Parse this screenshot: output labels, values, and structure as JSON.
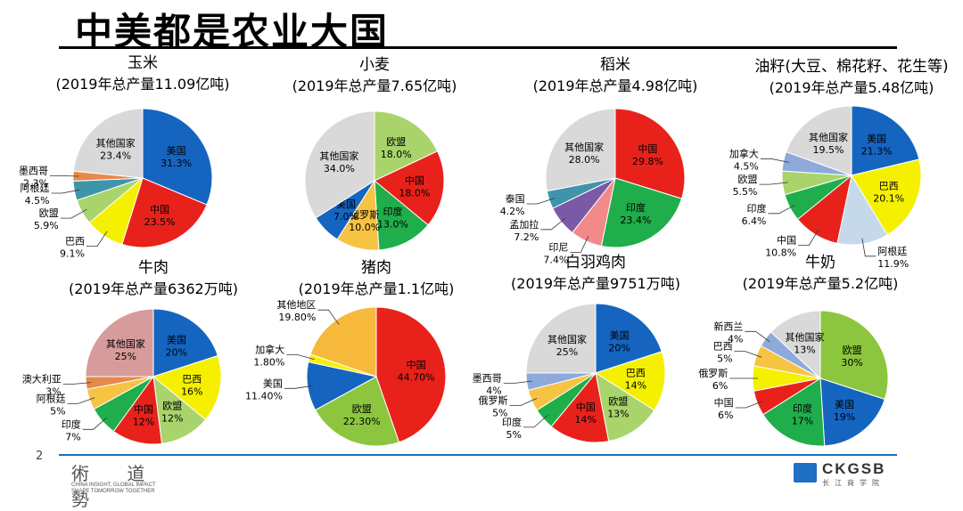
{
  "slide": {
    "title": "中美都是农业大国",
    "page_number": "2",
    "motto_glyphs": "術 道 勢",
    "motto_en_line1": "CHINA INSIGHT, GLOBAL IMPACT",
    "motto_en_line2": "SHAPE TOMORROW TOGETHER",
    "brand_name": "CKGSB",
    "brand_cn": "长江商学院",
    "accent_color": "#1f6fc4"
  },
  "chart_data": [
    {
      "type": "pie",
      "title": "玉米",
      "subtitle": "(2019年总产量11.09亿吨)",
      "slices": [
        {
          "label": "美国",
          "value_text": "31.3%",
          "value": 31.3,
          "color": "#1565c0",
          "label_position": "inside"
        },
        {
          "label": "中国",
          "value_text": "23.5%",
          "value": 23.5,
          "color": "#e8221b",
          "label_position": "inside"
        },
        {
          "label": "巴西",
          "value_text": "9.1%",
          "value": 9.1,
          "color": "#f4f000",
          "label_position": "outside"
        },
        {
          "label": "欧盟",
          "value_text": "5.9%",
          "value": 5.9,
          "color": "#a9d46b",
          "label_position": "outside"
        },
        {
          "label": "阿根廷",
          "value_text": "4.5%",
          "value": 4.5,
          "color": "#3e95ab",
          "label_position": "outside"
        },
        {
          "label": "墨西哥",
          "value_text": "2.3%",
          "value": 2.3,
          "color": "#e7894a",
          "label_position": "outside"
        },
        {
          "label": "其他国家",
          "value_text": "23.4%",
          "value": 23.4,
          "color": "#d9d9d9",
          "label_position": "inside"
        }
      ]
    },
    {
      "type": "pie",
      "title": "小麦",
      "subtitle": "(2019年总产量7.65亿吨)",
      "slices": [
        {
          "label": "欧盟",
          "value_text": "18.0%",
          "value": 18.0,
          "color": "#a9d46b",
          "label_position": "inside"
        },
        {
          "label": "中国",
          "value_text": "18.0%",
          "value": 18.0,
          "color": "#e8221b",
          "label_position": "inside"
        },
        {
          "label": "印度",
          "value_text": "13.0%",
          "value": 13.0,
          "color": "#1fae4b",
          "label_position": "inside"
        },
        {
          "label": "俄罗斯",
          "value_text": "10.0%",
          "value": 10.0,
          "color": "#f6c343",
          "label_position": "inside"
        },
        {
          "label": "美国",
          "value_text": "7.0%",
          "value": 7.0,
          "color": "#1565c0",
          "label_position": "inside"
        },
        {
          "label": "其他国家",
          "value_text": "34.0%",
          "value": 34.0,
          "color": "#d9d9d9",
          "label_position": "inside"
        }
      ]
    },
    {
      "type": "pie",
      "title": "稻米",
      "subtitle": "(2019年总产量4.98亿吨)",
      "slices": [
        {
          "label": "中国",
          "value_text": "29.8%",
          "value": 29.8,
          "color": "#e8221b",
          "label_position": "inside"
        },
        {
          "label": "印度",
          "value_text": "23.4%",
          "value": 23.4,
          "color": "#1fae4b",
          "label_position": "inside"
        },
        {
          "label": "印尼",
          "value_text": "7.4%",
          "value": 7.4,
          "color": "#f28a8a",
          "label_position": "outside"
        },
        {
          "label": "孟加拉",
          "value_text": "7.2%",
          "value": 7.2,
          "color": "#7a5aa6",
          "label_position": "outside"
        },
        {
          "label": "泰国",
          "value_text": "4.2%",
          "value": 4.2,
          "color": "#3e95ab",
          "label_position": "outside"
        },
        {
          "label": "其他国家",
          "value_text": "28.0%",
          "value": 28.0,
          "color": "#d9d9d9",
          "label_position": "inside"
        }
      ]
    },
    {
      "type": "pie",
      "title": "油籽(大豆、棉花籽、花生等)",
      "subtitle": "(2019年总产量5.48亿吨)",
      "slices": [
        {
          "label": "美国",
          "value_text": "21.3%",
          "value": 21.3,
          "color": "#1565c0",
          "label_position": "inside"
        },
        {
          "label": "巴西",
          "value_text": "20.1%",
          "value": 20.1,
          "color": "#f4f000",
          "label_position": "inside"
        },
        {
          "label": "阿根廷",
          "value_text": "11.9%",
          "value": 11.9,
          "color": "#c5d9ea",
          "label_position": "outside"
        },
        {
          "label": "中国",
          "value_text": "10.8%",
          "value": 10.8,
          "color": "#e8221b",
          "label_position": "outside"
        },
        {
          "label": "印度",
          "value_text": "6.4%",
          "value": 6.4,
          "color": "#1fae4b",
          "label_position": "outside"
        },
        {
          "label": "欧盟",
          "value_text": "5.5%",
          "value": 5.5,
          "color": "#a9d46b",
          "label_position": "outside"
        },
        {
          "label": "加拿大",
          "value_text": "4.5%",
          "value": 4.5,
          "color": "#8eaadb",
          "label_position": "outside"
        },
        {
          "label": "其他国家",
          "value_text": "19.5%",
          "value": 19.5,
          "color": "#d9d9d9",
          "label_position": "inside"
        }
      ]
    },
    {
      "type": "pie",
      "title": "牛肉",
      "subtitle": "(2019年总产量6362万吨)",
      "slices": [
        {
          "label": "美国",
          "value_text": "20%",
          "value": 20,
          "color": "#1565c0",
          "label_position": "inside"
        },
        {
          "label": "巴西",
          "value_text": "16%",
          "value": 16,
          "color": "#f4f000",
          "label_position": "inside"
        },
        {
          "label": "欧盟",
          "value_text": "12%",
          "value": 12,
          "color": "#a9d46b",
          "label_position": "inside"
        },
        {
          "label": "中国",
          "value_text": "12%",
          "value": 12,
          "color": "#e8221b",
          "label_position": "inside"
        },
        {
          "label": "印度",
          "value_text": "7%",
          "value": 7,
          "color": "#1fae4b",
          "label_position": "outside"
        },
        {
          "label": "阿根廷",
          "value_text": "5%",
          "value": 5,
          "color": "#f6c343",
          "label_position": "outside"
        },
        {
          "label": "澳大利亚",
          "value_text": "3%",
          "value": 3,
          "color": "#e7894a",
          "label_position": "outside"
        },
        {
          "label": "其他国家",
          "value_text": "25%",
          "value": 25,
          "color": "#d89b9b",
          "label_position": "inside"
        }
      ]
    },
    {
      "type": "pie",
      "title": "猪肉",
      "subtitle": "(2019年总产量1.1亿吨)",
      "slices": [
        {
          "label": "中国",
          "value_text": "44.70%",
          "value": 44.7,
          "color": "#e8221b",
          "label_position": "inside"
        },
        {
          "label": "欧盟",
          "value_text": "22.30%",
          "value": 22.3,
          "color": "#8cc63f",
          "label_position": "inside"
        },
        {
          "label": "美国",
          "value_text": "11.40%",
          "value": 11.4,
          "color": "#1565c0",
          "label_position": "outside"
        },
        {
          "label": "加拿大",
          "value_text": "1.80%",
          "value": 1.8,
          "color": "#f4f000",
          "label_position": "outside"
        },
        {
          "label": "其他地区",
          "value_text": "19.80%",
          "value": 19.8,
          "color": "#f6b93b",
          "label_position": "outside"
        }
      ]
    },
    {
      "type": "pie",
      "title": "白羽鸡肉",
      "subtitle": "(2019年总产量9751万吨)",
      "slices": [
        {
          "label": "美国",
          "value_text": "20%",
          "value": 20,
          "color": "#1565c0",
          "label_position": "inside"
        },
        {
          "label": "巴西",
          "value_text": "14%",
          "value": 14,
          "color": "#f4f000",
          "label_position": "inside"
        },
        {
          "label": "欧盟",
          "value_text": "13%",
          "value": 13,
          "color": "#a9d46b",
          "label_position": "inside"
        },
        {
          "label": "中国",
          "value_text": "14%",
          "value": 14,
          "color": "#e8221b",
          "label_position": "inside"
        },
        {
          "label": "印度",
          "value_text": "5%",
          "value": 5,
          "color": "#1fae4b",
          "label_position": "outside"
        },
        {
          "label": "俄罗斯",
          "value_text": "5%",
          "value": 5,
          "color": "#f6c343",
          "label_position": "outside"
        },
        {
          "label": "墨西哥",
          "value_text": "4%",
          "value": 4,
          "color": "#8eaadb",
          "label_position": "outside"
        },
        {
          "label": "其他国家",
          "value_text": "25%",
          "value": 25,
          "color": "#d9d9d9",
          "label_position": "inside"
        }
      ]
    },
    {
      "type": "pie",
      "title": "牛奶",
      "subtitle": "(2019年总产量5.2亿吨)",
      "slices": [
        {
          "label": "欧盟",
          "value_text": "30%",
          "value": 30,
          "color": "#8cc63f",
          "label_position": "inside"
        },
        {
          "label": "美国",
          "value_text": "19%",
          "value": 19,
          "color": "#1565c0",
          "label_position": "inside"
        },
        {
          "label": "印度",
          "value_text": "17%",
          "value": 17,
          "color": "#1fae4b",
          "label_position": "inside"
        },
        {
          "label": "中国",
          "value_text": "6%",
          "value": 6,
          "color": "#e8221b",
          "label_position": "outside"
        },
        {
          "label": "俄罗斯",
          "value_text": "6%",
          "value": 6,
          "color": "#f4f000",
          "label_position": "outside"
        },
        {
          "label": "巴西",
          "value_text": "5%",
          "value": 5,
          "color": "#f6c343",
          "label_position": "outside"
        },
        {
          "label": "新西兰",
          "value_text": "4%",
          "value": 4,
          "color": "#8eaadb",
          "label_position": "outside"
        },
        {
          "label": "其他国家",
          "value_text": "13%",
          "value": 13,
          "color": "#d9d9d9",
          "label_position": "inside"
        }
      ]
    }
  ]
}
